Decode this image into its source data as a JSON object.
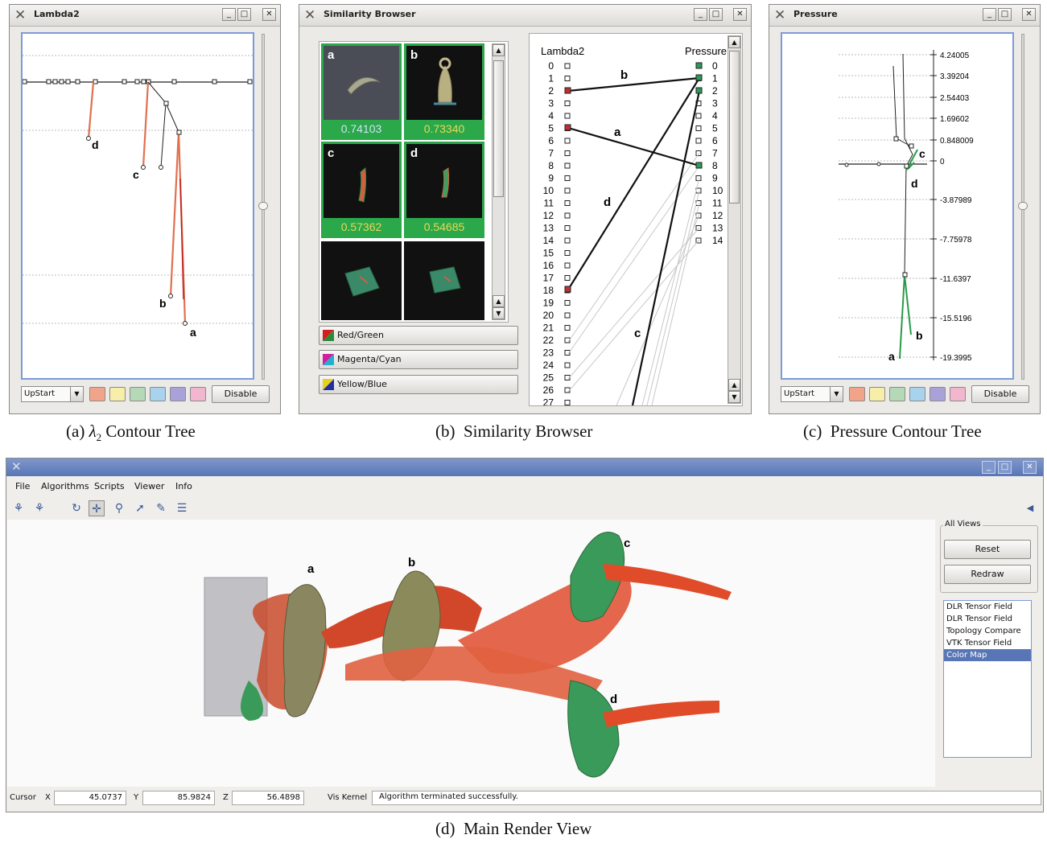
{
  "lambda_window": {
    "title": "Lambda2",
    "labels": {
      "a": "a",
      "b": "b",
      "c": "c",
      "d": "d"
    },
    "combo": "UpStart",
    "disable": "Disable",
    "swatches": [
      "#f2a48a",
      "#f7eeaa",
      "#b5d9b6",
      "#a9d2ee",
      "#a9a2d9",
      "#f3b6cf"
    ]
  },
  "similarity_window": {
    "title": "Similarity Browser",
    "thumbs": [
      {
        "label": "a",
        "value": "0.74103"
      },
      {
        "label": "b",
        "value": "0.73340"
      },
      {
        "label": "c",
        "value": "0.57362"
      },
      {
        "label": "d",
        "value": "0.54685"
      }
    ],
    "schemes": [
      "Red/Green",
      "Magenta/Cyan",
      "Yellow/Blue"
    ],
    "left_header": "Lambda2",
    "right_header": "Pressure",
    "left_nodes": [
      "0",
      "1",
      "2",
      "3",
      "4",
      "5",
      "6",
      "7",
      "8",
      "9",
      "10",
      "11",
      "12",
      "13",
      "14",
      "15",
      "16",
      "17",
      "18",
      "19",
      "20",
      "21",
      "22",
      "23",
      "24",
      "25",
      "26",
      "27"
    ],
    "right_nodes": [
      "0",
      "1",
      "2",
      "3",
      "4",
      "5",
      "6",
      "7",
      "8",
      "9",
      "10",
      "11",
      "12",
      "13",
      "14"
    ],
    "match_labels": {
      "a": "a",
      "b": "b",
      "c": "c",
      "d": "d"
    }
  },
  "pressure_window": {
    "title": "Pressure",
    "ticks": [
      "4.24005",
      "3.39204",
      "2.54403",
      "1.69602",
      "0.848009",
      "0",
      "-3.87989",
      "-7.75978",
      "-11.6397",
      "-15.5196",
      "-19.3995"
    ],
    "labels": {
      "a": "a",
      "b": "b",
      "c": "c",
      "d": "d"
    },
    "combo": "UpStart",
    "disable": "Disable",
    "swatches": [
      "#f2a48a",
      "#f7eeaa",
      "#b5d9b6",
      "#a9d2ee",
      "#a9a2d9",
      "#f3b6cf"
    ]
  },
  "captions": {
    "a_prefix": "(a)",
    "a_symbol": "λ",
    "a_sub": "2",
    "a_text": "Contour Tree",
    "b": "(b)  Similarity Browser",
    "c": "(c)  Pressure Contour Tree",
    "d": "(d)  Main Render View"
  },
  "main_window": {
    "menu": [
      "File",
      "Algorithms",
      "Scripts",
      "Viewer",
      "Info"
    ],
    "tools": [
      "agent-icon",
      "agent2-icon",
      "rotate-icon",
      "pan-icon",
      "zoom-icon",
      "pick-icon",
      "probe-icon",
      "fan-icon"
    ],
    "labels": {
      "a": "a",
      "b": "b",
      "c": "c",
      "d": "d"
    },
    "all_views": "All Views",
    "reset": "Reset",
    "redraw": "Redraw",
    "list": [
      "DLR Tensor Field",
      "DLR Tensor Field",
      "Topology Compare",
      "VTK Tensor Field",
      "Color Map"
    ],
    "selected_index": 4,
    "status": {
      "cursor": "Cursor",
      "x_label": "X",
      "x": "45.0737",
      "y_label": "Y",
      "y": "85.9824",
      "z_label": "Z",
      "z": "56.4898",
      "kernel": "Vis Kernel",
      "message": "Algorithm terminated successfully."
    }
  }
}
